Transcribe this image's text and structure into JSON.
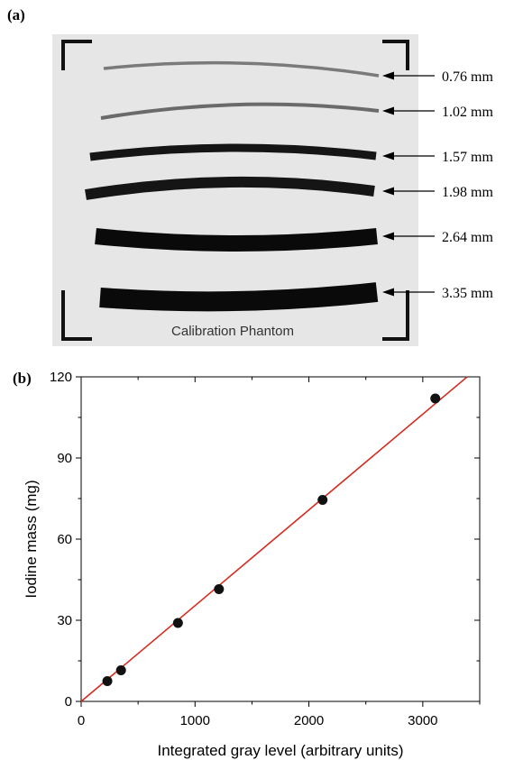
{
  "panel_a": {
    "label": "(a)",
    "phantom_label": "Calibration Phantom",
    "wires": [
      {
        "label": "0.76 mm",
        "color": "#7a7a7a"
      },
      {
        "label": "1.02 mm",
        "color": "#6a6a6a"
      },
      {
        "label": "1.57 mm",
        "color": "#151515"
      },
      {
        "label": "1.98 mm",
        "color": "#151515"
      },
      {
        "label": "2.64 mm",
        "color": "#0a0a0a"
      },
      {
        "label": "3.35 mm",
        "color": "#0a0a0a"
      }
    ],
    "background_color": "#e6e6e6"
  },
  "panel_b": {
    "label": "(b)"
  },
  "chart_data": {
    "type": "scatter",
    "xlabel": "Integrated gray level (arbitrary units)",
    "ylabel": "Iodine mass (mg)",
    "xlim": [
      0,
      3500
    ],
    "ylim": [
      0,
      120
    ],
    "x_ticks": [
      0,
      1000,
      2000,
      3000
    ],
    "y_ticks": [
      0,
      30,
      60,
      90,
      120
    ],
    "grid": false,
    "series": [
      {
        "points": [
          {
            "x": 230,
            "y": 7.5
          },
          {
            "x": 350,
            "y": 11.5
          },
          {
            "x": 850,
            "y": 29
          },
          {
            "x": 1210,
            "y": 41.5
          },
          {
            "x": 2120,
            "y": 74.5
          },
          {
            "x": 3110,
            "y": 112
          }
        ],
        "color": "#111111"
      }
    ],
    "fit_line": {
      "slope": 0.0354,
      "intercept": 0,
      "color": "#d62a1e"
    }
  }
}
